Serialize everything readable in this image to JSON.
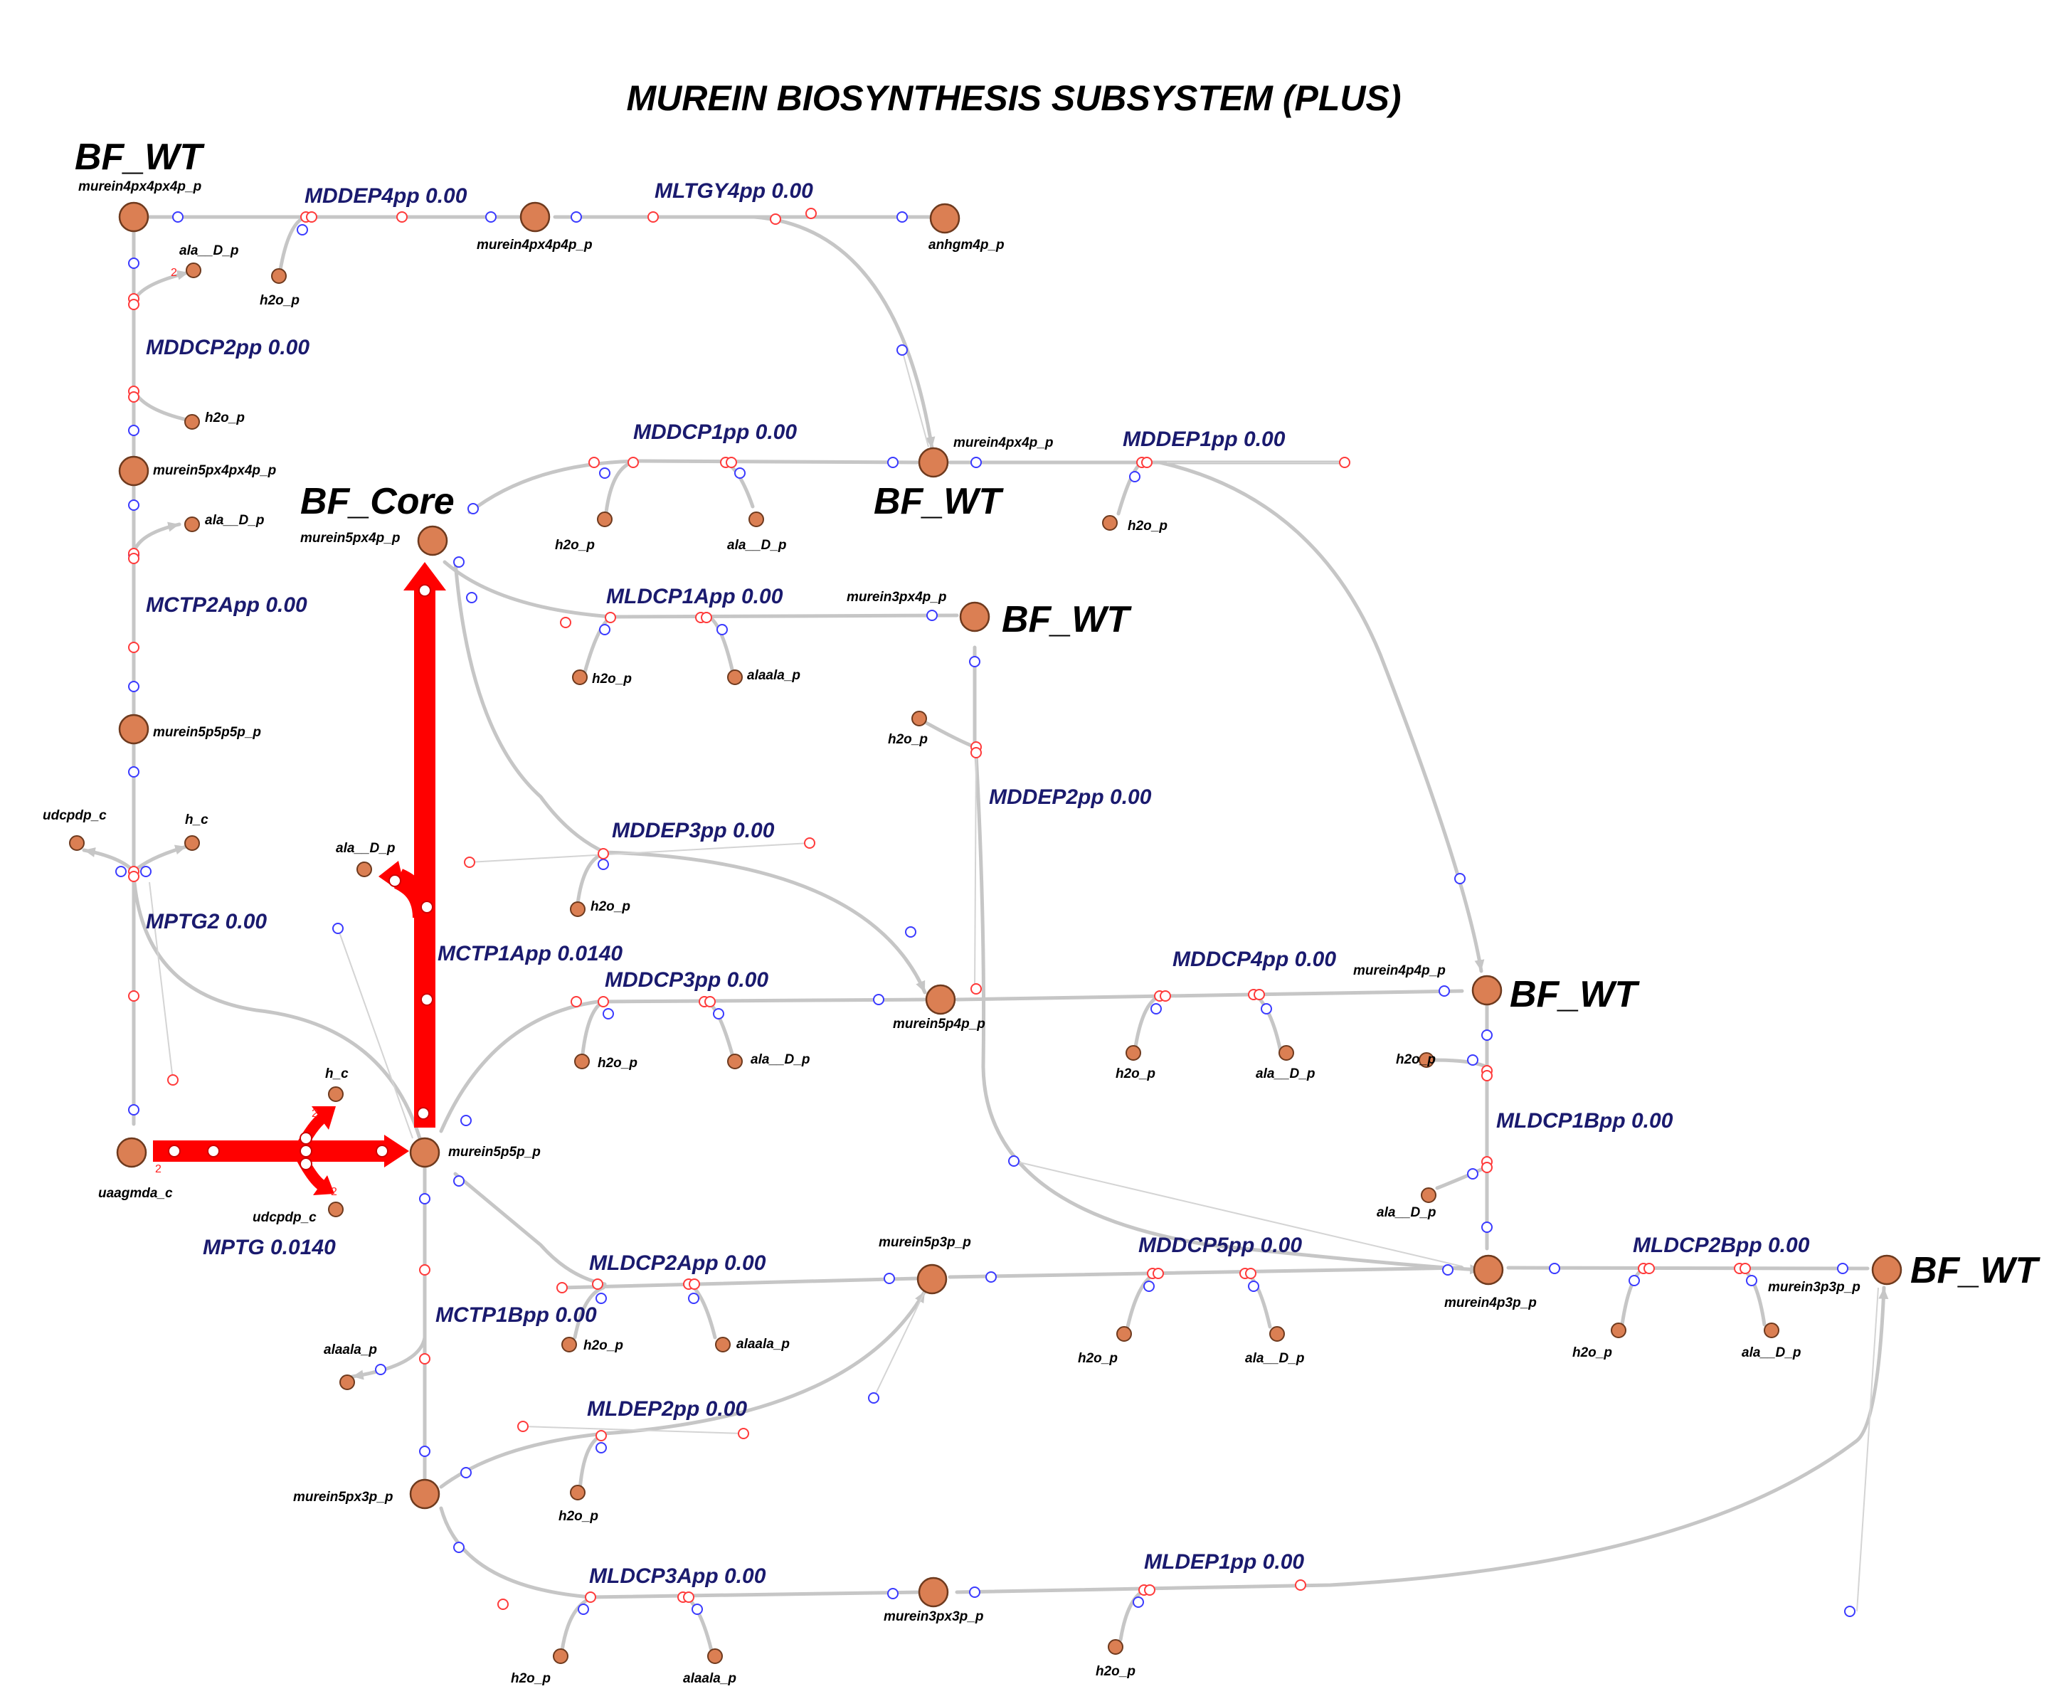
{
  "title": "MUREIN BIOSYNTHESIS SUBSYSTEM (PLUS)",
  "tags": {
    "t1": "BF_WT",
    "t2": "BF_Core",
    "t3": "BF_WT",
    "t4": "BF_WT",
    "t5": "BF_WT",
    "t6": "BF_WT"
  },
  "reactions": {
    "MDDEP4pp": "MDDEP4pp 0.00",
    "MLTGY4pp": "MLTGY4pp 0.00",
    "MDDCP2pp": "MDDCP2pp 0.00",
    "MDDCP1pp": "MDDCP1pp 0.00",
    "MDDEP1pp": "MDDEP1pp 0.00",
    "MCTP2App": "MCTP2App 0.00",
    "MLDCP1App": "MLDCP1App 0.00",
    "MDDEP2pp": "MDDEP2pp 0.00",
    "MDDEP3pp": "MDDEP3pp 0.00",
    "MPTG2": "MPTG2 0.00",
    "MCTP1App": "MCTP1App 0.0140",
    "MDDCP3pp": "MDDCP3pp 0.00",
    "MDDCP4pp": "MDDCP4pp 0.00",
    "MLDCP1Bpp": "MLDCP1Bpp 0.00",
    "MPTG": "MPTG 0.0140",
    "MLDCP2App": "MLDCP2App 0.00",
    "MDDCP5pp": "MDDCP5pp 0.00",
    "MLDCP2Bpp": "MLDCP2Bpp 0.00",
    "MCTP1Bpp": "MCTP1Bpp 0.00",
    "MLDEP2pp": "MLDEP2pp 0.00",
    "MLDCP3App": "MLDCP3App 0.00",
    "MLDEP1pp": "MLDEP1pp 0.00"
  },
  "metabolites": {
    "m1": "murein4px4px4p_p",
    "m2": "ala__D_p",
    "m3": "h2o_p",
    "m4": "murein4px4p4p_p",
    "m5": "anhgm4p_p",
    "m6": "h2o_p",
    "m7": "murein5px4px4p_p",
    "m8": "ala__D_p",
    "m9": "murein5p5p5p_p",
    "m10": "udcpdp_c",
    "m11": "h_c",
    "m12": "murein5px4p_p",
    "m13": "h2o_p",
    "m14": "ala__D_p",
    "m15": "murein4px4p_p",
    "m16": "h2o_p",
    "m17": "murein3px4p_p",
    "m18": "h2o_p",
    "m19": "alaala_p",
    "m20": "h2o_p",
    "m21": "ala__D_p",
    "m22": "h2o_p",
    "m23": "h2o_p",
    "m24": "ala__D_p",
    "m25": "murein5p4p_p",
    "m26": "murein4p4p_p",
    "m27": "h2o_p",
    "m28": "ala__D_p",
    "m29": "h2o_p",
    "m30": "h_c",
    "m31": "udcpdp_c",
    "m32": "uaagmda_c",
    "m33": "murein5p5p_p",
    "m34": "ala__D_p",
    "m35": "murein5p3p_p",
    "m36": "h2o_p",
    "m37": "alaala_p",
    "m38": "h2o_p",
    "m39": "ala__D_p",
    "m40": "murein4p3p_p",
    "m41": "h2o_p",
    "m42": "ala__D_p",
    "m43": "murein3p3p_p",
    "m44": "alaala_p",
    "m45": "h2o_p",
    "m46": "murein5px3p_p",
    "m47": "h2o_p",
    "m48": "alaala_p",
    "m49": "murein3px3p_p",
    "m50": "h2o_p"
  },
  "stoichiometry": {
    "s1": "2",
    "s2": "2",
    "s3": "2",
    "s4": "2"
  },
  "colors": {
    "flux": "#ff0000",
    "metabolite_fill": "#db7f53",
    "reaction_label": "#1a1a6e",
    "edge": "#c6c6c6",
    "midpoint_marker": "#3a3aff",
    "connector_marker": "#ff3a3a"
  }
}
